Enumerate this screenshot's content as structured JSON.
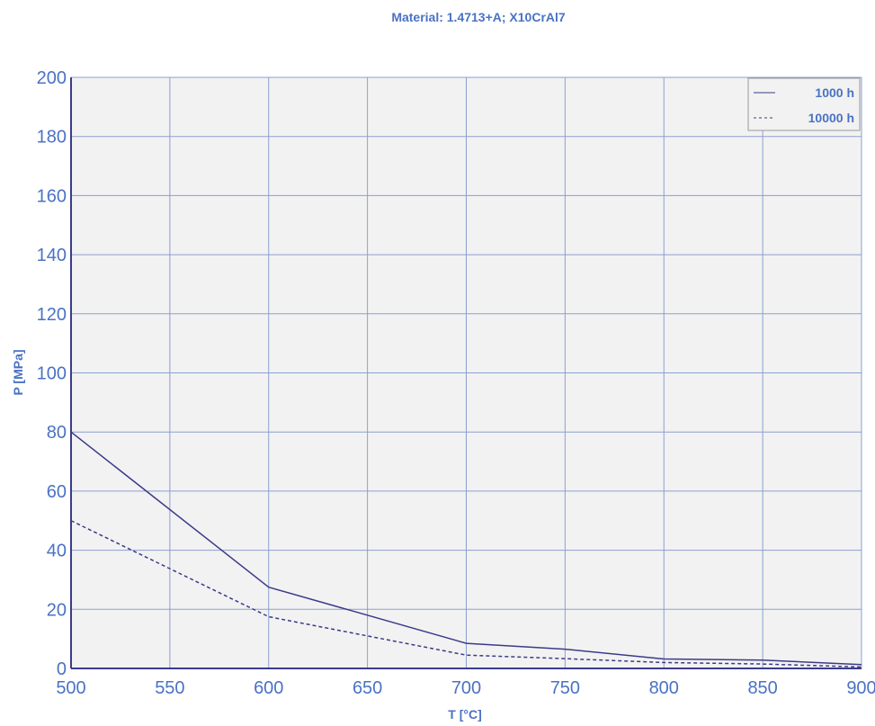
{
  "colors": {
    "text": "#4a72c4",
    "line": "#3b3b8a",
    "grid": "#8b9fd0",
    "plot_bg": "#f2f2f2",
    "axis": "#3b3b8a",
    "legend_border": "#9a9a9a"
  },
  "chart_data": {
    "type": "line",
    "title": "Material: 1.4713+A; X10CrAl7",
    "xlabel": "T [°C]",
    "ylabel": "P [MPa]",
    "xlim": [
      500,
      900
    ],
    "ylim": [
      0,
      200
    ],
    "xticks": [
      500,
      550,
      600,
      650,
      700,
      750,
      800,
      850,
      900
    ],
    "yticks": [
      0,
      20,
      40,
      60,
      80,
      100,
      120,
      140,
      160,
      180,
      200
    ],
    "grid": true,
    "legend_position": "top-right",
    "x": [
      500,
      600,
      700,
      750,
      800,
      850,
      900
    ],
    "series": [
      {
        "name": "1000 h",
        "style": "solid",
        "values": [
          80,
          27.5,
          8.5,
          6.5,
          3.2,
          2.8,
          1.3
        ]
      },
      {
        "name": "10000 h",
        "style": "dashed",
        "values": [
          50,
          17.5,
          4.5,
          3.3,
          2.0,
          1.5,
          0.5
        ]
      }
    ]
  }
}
